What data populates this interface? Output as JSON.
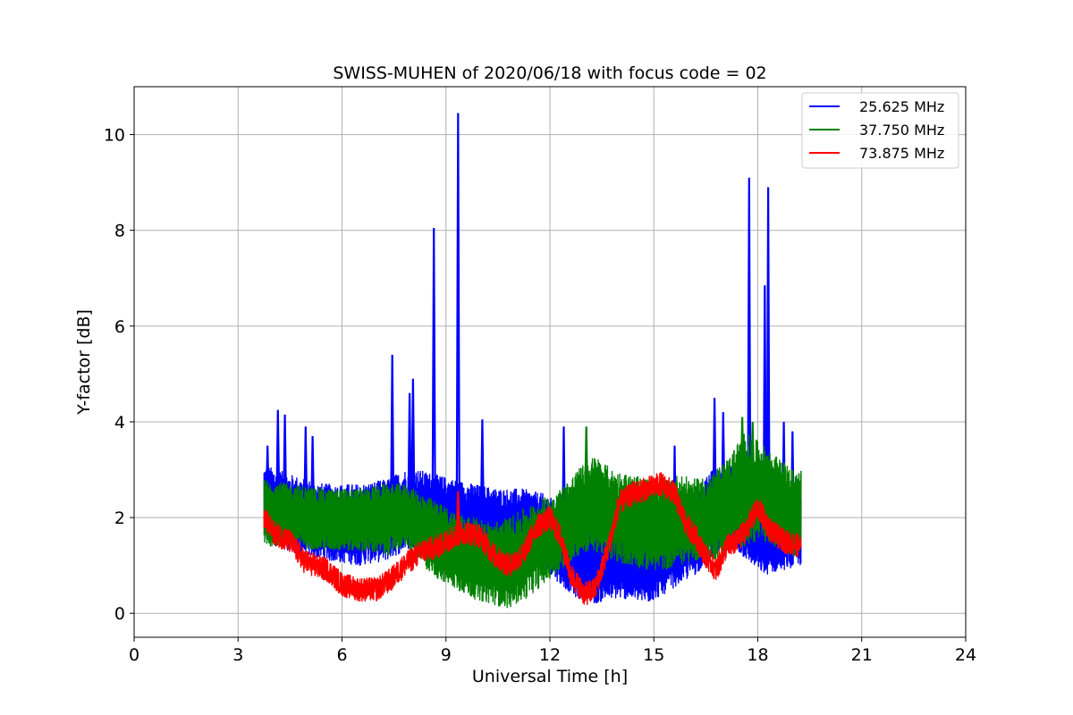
{
  "chart_data": {
    "type": "line",
    "title": "SWISS-MUHEN of 2020/06/18 with focus code = 02",
    "xlabel": "Universal Time [h]",
    "ylabel": "Y-factor [dB]",
    "xlim": [
      0,
      24
    ],
    "ylim": [
      -0.5,
      11
    ],
    "xticks": [
      0,
      3,
      6,
      9,
      12,
      15,
      18,
      21,
      24
    ],
    "yticks": [
      0,
      2,
      4,
      6,
      8,
      10
    ],
    "grid": true,
    "legend_position": "top-right",
    "series": [
      {
        "name": "25.625 MHz",
        "color": "#0000ff",
        "band": {
          "x": [
            3.75,
            4.5,
            5.5,
            6.5,
            7.3,
            7.8,
            8.2,
            8.7,
            9.2,
            9.8,
            10.5,
            11.2,
            11.8,
            12.3,
            12.8,
            13.3,
            13.8,
            14.3,
            14.8,
            15.3,
            15.7,
            16.2,
            16.7,
            17.2,
            17.7,
            18.2,
            18.7,
            19.25
          ],
          "low": [
            1.5,
            1.3,
            1.1,
            1.0,
            1.1,
            1.3,
            1.4,
            1.4,
            1.4,
            1.3,
            1.2,
            1.1,
            1.0,
            0.6,
            0.3,
            0.2,
            0.3,
            0.3,
            0.2,
            0.4,
            0.6,
            0.8,
            1.2,
            1.4,
            1.1,
            0.8,
            0.9,
            1.0
          ],
          "high": [
            3.1,
            2.9,
            2.7,
            2.7,
            2.8,
            3.0,
            3.0,
            2.9,
            2.8,
            2.7,
            2.6,
            2.6,
            2.5,
            2.3,
            2.1,
            1.9,
            1.8,
            1.7,
            1.6,
            1.9,
            2.2,
            2.6,
            3.0,
            3.1,
            2.3,
            2.1,
            2.3,
            2.5
          ]
        },
        "spikes": [
          {
            "x": 3.85,
            "y": 3.5
          },
          {
            "x": 4.15,
            "y": 4.25
          },
          {
            "x": 4.35,
            "y": 4.15
          },
          {
            "x": 4.95,
            "y": 3.9
          },
          {
            "x": 5.15,
            "y": 3.7
          },
          {
            "x": 7.45,
            "y": 5.4
          },
          {
            "x": 7.95,
            "y": 4.6
          },
          {
            "x": 8.05,
            "y": 4.9
          },
          {
            "x": 8.65,
            "y": 8.05
          },
          {
            "x": 9.35,
            "y": 10.45
          },
          {
            "x": 10.05,
            "y": 4.05
          },
          {
            "x": 12.4,
            "y": 3.9
          },
          {
            "x": 15.6,
            "y": 3.5
          },
          {
            "x": 16.75,
            "y": 4.5
          },
          {
            "x": 17.0,
            "y": 4.2
          },
          {
            "x": 17.75,
            "y": 9.1
          },
          {
            "x": 18.2,
            "y": 6.85
          },
          {
            "x": 18.3,
            "y": 8.9
          },
          {
            "x": 18.75,
            "y": 4.0
          },
          {
            "x": 19.0,
            "y": 3.8
          }
        ]
      },
      {
        "name": "37.750 MHz",
        "color": "#008000",
        "band": {
          "x": [
            3.75,
            4.5,
            5.5,
            6.5,
            7.3,
            7.8,
            8.3,
            8.8,
            9.3,
            9.8,
            10.3,
            10.8,
            11.3,
            11.8,
            12.3,
            12.8,
            13.3,
            13.8,
            14.3,
            14.8,
            15.3,
            15.7,
            16.2,
            16.7,
            17.2,
            17.6,
            18.0,
            18.5,
            19.0,
            19.25
          ],
          "low": [
            1.4,
            1.4,
            1.3,
            1.3,
            1.2,
            1.4,
            1.0,
            0.7,
            0.5,
            0.3,
            0.2,
            0.1,
            0.3,
            0.6,
            0.9,
            1.2,
            1.3,
            1.1,
            1.0,
            0.9,
            0.9,
            1.0,
            1.1,
            1.1,
            1.3,
            1.4,
            1.5,
            1.4,
            1.2,
            1.2
          ],
          "high": [
            2.8,
            2.7,
            2.6,
            2.6,
            2.7,
            2.7,
            2.5,
            2.3,
            2.1,
            2.0,
            1.9,
            2.0,
            2.2,
            2.4,
            2.6,
            3.0,
            3.3,
            3.0,
            2.9,
            2.8,
            2.8,
            2.9,
            2.8,
            2.9,
            3.3,
            3.8,
            3.6,
            3.3,
            3.0,
            3.0
          ]
        },
        "spikes": [
          {
            "x": 13.05,
            "y": 3.9
          },
          {
            "x": 17.55,
            "y": 4.1
          },
          {
            "x": 17.85,
            "y": 4.0
          }
        ]
      },
      {
        "name": "73.875 MHz",
        "color": "#ff0000",
        "path": {
          "x": [
            3.75,
            4.0,
            4.5,
            4.9,
            5.2,
            5.6,
            6.0,
            6.5,
            7.0,
            7.4,
            7.8,
            8.3,
            8.8,
            9.2,
            9.6,
            10.0,
            10.4,
            10.8,
            11.2,
            11.6,
            12.0,
            12.3,
            12.6,
            13.0,
            13.3,
            13.7,
            14.0,
            14.4,
            14.8,
            15.2,
            15.6,
            15.9,
            16.2,
            16.5,
            16.8,
            17.1,
            17.4,
            17.7,
            18.0,
            18.4,
            18.8,
            19.25
          ],
          "y": [
            2.0,
            1.7,
            1.5,
            1.1,
            1.0,
            0.9,
            0.6,
            0.5,
            0.5,
            0.7,
            1.0,
            1.3,
            1.4,
            1.6,
            1.7,
            1.6,
            1.2,
            1.0,
            1.2,
            1.8,
            2.0,
            1.6,
            0.8,
            0.4,
            0.5,
            1.4,
            2.3,
            2.5,
            2.6,
            2.7,
            2.5,
            1.9,
            1.6,
            1.2,
            0.9,
            1.4,
            1.5,
            1.8,
            2.2,
            1.7,
            1.5,
            1.4
          ]
        },
        "noise_amplitude": 0.25,
        "spikes": [
          {
            "x": 9.35,
            "y": 2.55
          }
        ]
      }
    ]
  }
}
